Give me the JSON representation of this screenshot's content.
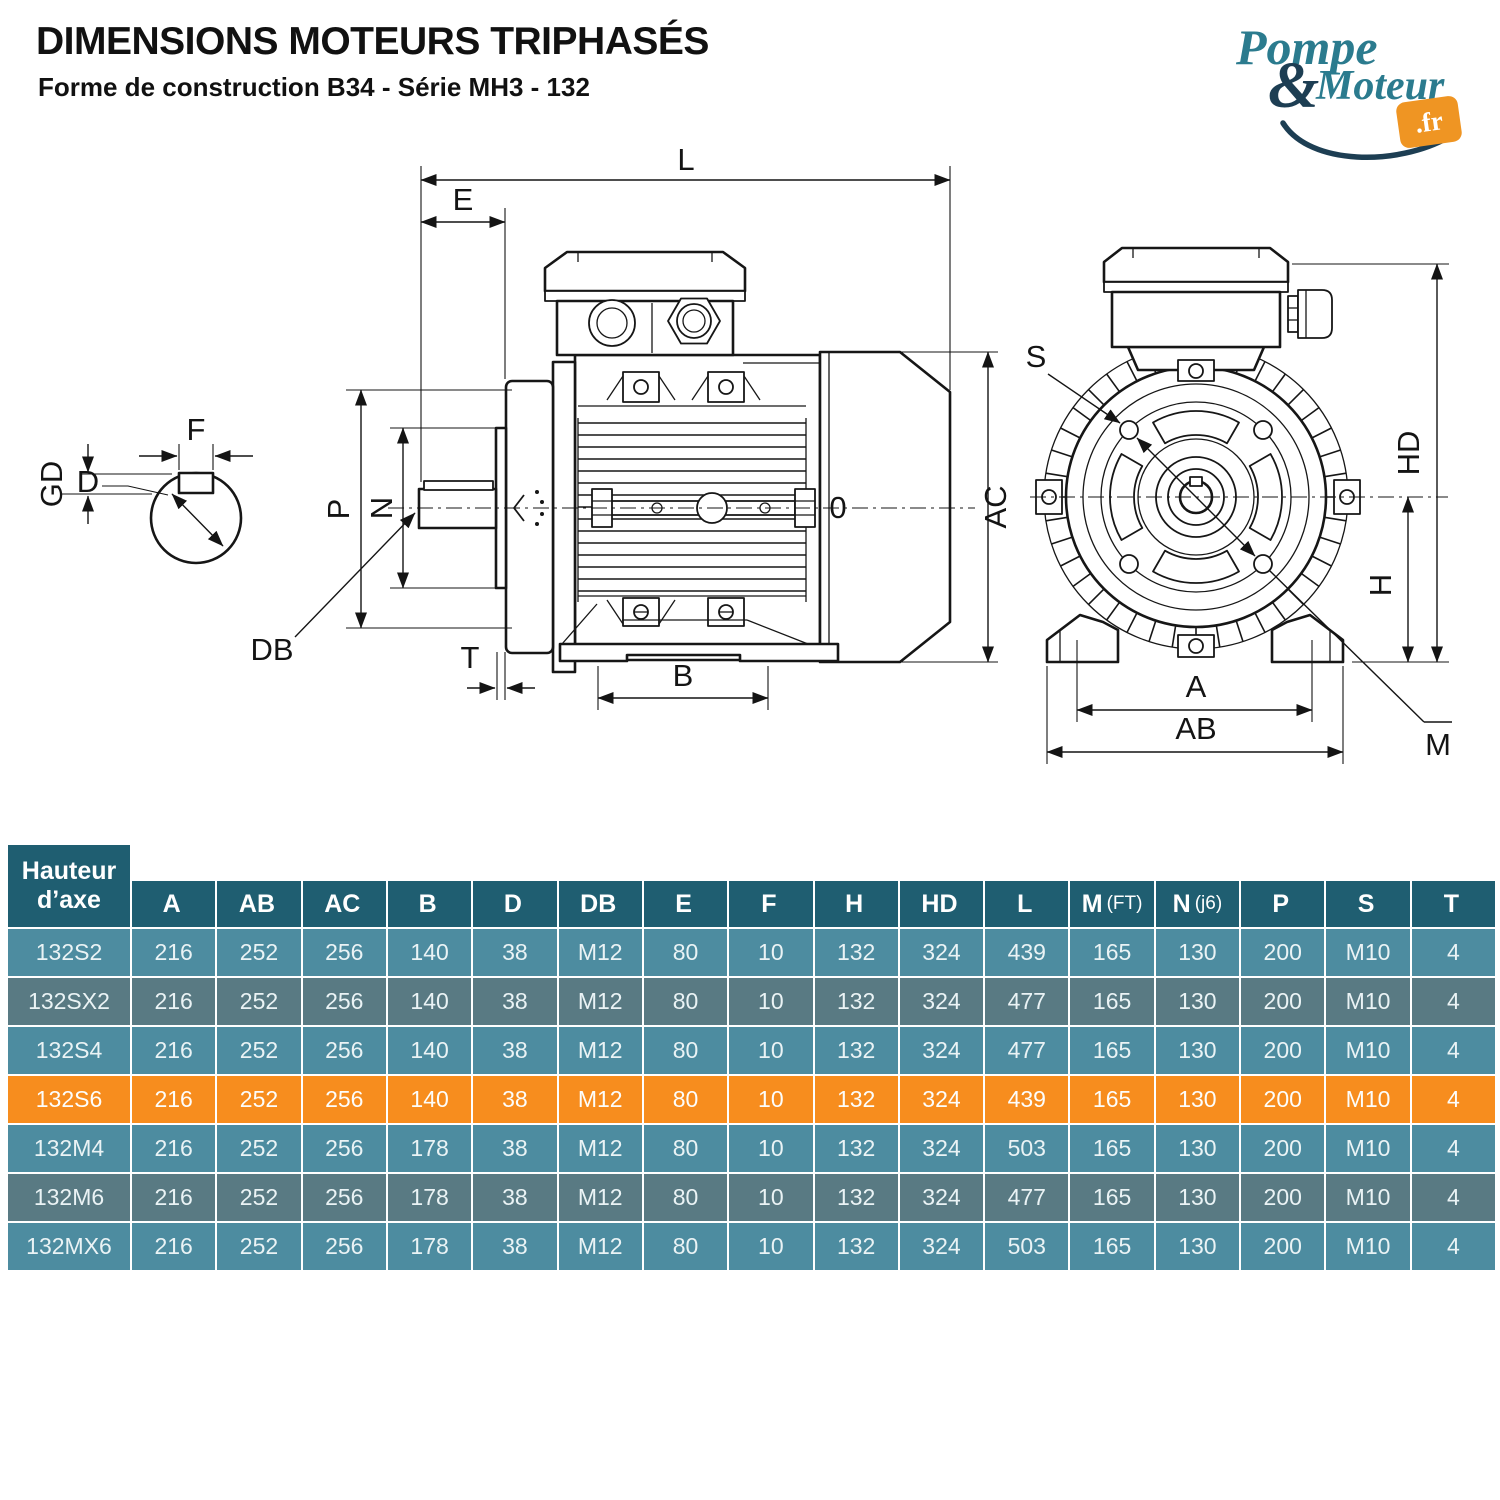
{
  "header": {
    "title": "DIMENSIONS MOTEURS TRIPHASÉS",
    "subtitle": "Forme de construction B34 - Série MH3 - 132"
  },
  "logo": {
    "word1": "Pompe",
    "amp": "&",
    "word2": "Moteur",
    "tld": ".fr",
    "teal": "#2b7b8e",
    "navy": "#1d3e53",
    "orange": "#ef9523"
  },
  "drawing": {
    "labels": {
      "L": "L",
      "E": "E",
      "P": "P",
      "N": "N",
      "DB": "DB",
      "T": "T",
      "B": "B",
      "AC": "AC",
      "O": "0",
      "F": "F",
      "D": "D",
      "GD": "GD",
      "S": "S",
      "HD": "HD",
      "H": "H",
      "A": "A",
      "AB": "AB",
      "M": "M"
    }
  },
  "table": {
    "corner": {
      "line1": "Hauteur",
      "line2": "d’axe"
    },
    "colors": {
      "header": "#1f5e71",
      "row_light": "#4d8ca0",
      "row_dark": "#597a83",
      "highlight": "#f78d1e"
    },
    "columns": [
      {
        "label": "A",
        "suffix": ""
      },
      {
        "label": "AB",
        "suffix": ""
      },
      {
        "label": "AC",
        "suffix": ""
      },
      {
        "label": "B",
        "suffix": ""
      },
      {
        "label": "D",
        "suffix": ""
      },
      {
        "label": "DB",
        "suffix": ""
      },
      {
        "label": "E",
        "suffix": ""
      },
      {
        "label": "F",
        "suffix": ""
      },
      {
        "label": "H",
        "suffix": ""
      },
      {
        "label": "HD",
        "suffix": ""
      },
      {
        "label": "L",
        "suffix": ""
      },
      {
        "label": "M",
        "suffix": "(FT)"
      },
      {
        "label": "N",
        "suffix": "(j6)"
      },
      {
        "label": "P",
        "suffix": ""
      },
      {
        "label": "S",
        "suffix": ""
      },
      {
        "label": "T",
        "suffix": ""
      }
    ],
    "rows": [
      {
        "model": "132S2",
        "highlight": false,
        "values": [
          "216",
          "252",
          "256",
          "140",
          "38",
          "M12",
          "80",
          "10",
          "132",
          "324",
          "439",
          "165",
          "130",
          "200",
          "M10",
          "4"
        ]
      },
      {
        "model": "132SX2",
        "highlight": false,
        "values": [
          "216",
          "252",
          "256",
          "140",
          "38",
          "M12",
          "80",
          "10",
          "132",
          "324",
          "477",
          "165",
          "130",
          "200",
          "M10",
          "4"
        ]
      },
      {
        "model": "132S4",
        "highlight": false,
        "values": [
          "216",
          "252",
          "256",
          "140",
          "38",
          "M12",
          "80",
          "10",
          "132",
          "324",
          "477",
          "165",
          "130",
          "200",
          "M10",
          "4"
        ]
      },
      {
        "model": "132S6",
        "highlight": true,
        "values": [
          "216",
          "252",
          "256",
          "140",
          "38",
          "M12",
          "80",
          "10",
          "132",
          "324",
          "439",
          "165",
          "130",
          "200",
          "M10",
          "4"
        ]
      },
      {
        "model": "132M4",
        "highlight": false,
        "values": [
          "216",
          "252",
          "256",
          "178",
          "38",
          "M12",
          "80",
          "10",
          "132",
          "324",
          "503",
          "165",
          "130",
          "200",
          "M10",
          "4"
        ]
      },
      {
        "model": "132M6",
        "highlight": false,
        "values": [
          "216",
          "252",
          "256",
          "178",
          "38",
          "M12",
          "80",
          "10",
          "132",
          "324",
          "477",
          "165",
          "130",
          "200",
          "M10",
          "4"
        ]
      },
      {
        "model": "132MX6",
        "highlight": false,
        "values": [
          "216",
          "252",
          "256",
          "178",
          "38",
          "M12",
          "80",
          "10",
          "132",
          "324",
          "503",
          "165",
          "130",
          "200",
          "M10",
          "4"
        ]
      }
    ]
  }
}
